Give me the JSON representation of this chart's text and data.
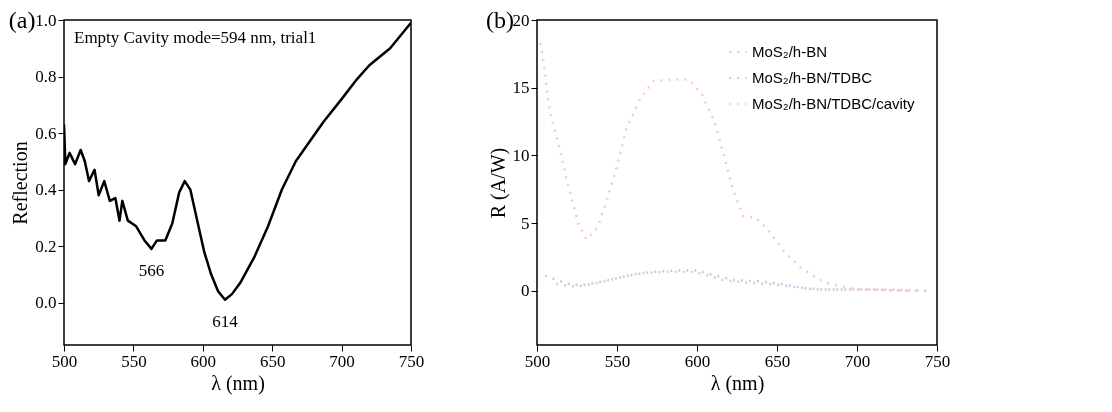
{
  "chart_data": [
    {
      "type": "line",
      "title": "(a)",
      "xlabel": "λ (nm)",
      "ylabel": "Reflection",
      "xlim": [
        500,
        750
      ],
      "xticks": [
        500,
        550,
        600,
        650,
        700,
        750
      ],
      "ylim": [
        -0.15,
        1.0
      ],
      "yticks": [
        {
          "value": 0,
          "label": "0.0"
        },
        {
          "value": 0.2,
          "label": "0.2"
        },
        {
          "value": 0.4,
          "label": "0.4"
        },
        {
          "value": 0.6,
          "label": "0.6"
        },
        {
          "value": 0.8,
          "label": "0.8"
        },
        {
          "value": 1.0,
          "label": "1.0"
        }
      ],
      "series": [
        {
          "color": "#000000",
          "x": [
            500,
            501,
            504,
            508,
            512,
            515,
            518,
            522,
            525,
            529,
            533,
            537,
            540,
            542,
            546,
            552,
            558,
            563,
            567,
            573,
            578,
            583,
            587,
            591,
            596,
            601,
            606,
            611,
            616,
            621,
            627,
            637,
            647,
            657,
            667,
            677,
            687,
            700,
            711,
            720,
            735,
            745,
            750
          ],
          "values": [
            0.63,
            0.49,
            0.53,
            0.49,
            0.54,
            0.5,
            0.43,
            0.47,
            0.38,
            0.43,
            0.36,
            0.37,
            0.29,
            0.36,
            0.29,
            0.27,
            0.22,
            0.19,
            0.22,
            0.22,
            0.28,
            0.39,
            0.43,
            0.4,
            0.29,
            0.18,
            0.1,
            0.04,
            0.01,
            0.03,
            0.07,
            0.16,
            0.27,
            0.4,
            0.5,
            0.57,
            0.64,
            0.72,
            0.79,
            0.84,
            0.9,
            0.96,
            0.99
          ]
        }
      ],
      "annotations": [
        "Empty Cavity mode=594 nm, trial1",
        {
          "text": "566",
          "x": 563,
          "y": 0.19
        },
        {
          "text": "614",
          "x": 616,
          "y": 0.01
        }
      ]
    },
    {
      "type": "line",
      "title": "(b)",
      "xlabel": "λ (nm)",
      "ylabel": "R (A/W)",
      "xlim": [
        500,
        750
      ],
      "xticks": [
        500,
        550,
        600,
        650,
        700,
        750
      ],
      "ylim": [
        -4,
        20
      ],
      "yticks": [
        0,
        5,
        10,
        15,
        20
      ],
      "legend": "top right",
      "line_style": "dashed",
      "series": [
        {
          "name": "MoS₂/h-BN",
          "color": "#e4c4dc",
          "x": [
            512,
            524,
            535,
            549,
            564,
            580,
            591,
            598,
            605,
            616,
            631,
            646,
            660,
            673,
            690,
            710,
            732
          ],
          "values": [
            0.5,
            0.3,
            0.5,
            0.9,
            1.3,
            1.4,
            1.4,
            1.4,
            1.2,
            0.8,
            0.6,
            0.5,
            0.3,
            0.1,
            0.1,
            0.1,
            0.0
          ]
        },
        {
          "name": "MoS₂/h-BN/TDBC",
          "color": "#c8c8f0",
          "x": [
            505,
            520,
            527,
            542,
            556,
            572,
            587,
            594,
            601,
            609,
            623,
            639,
            653,
            667,
            679,
            700,
            720,
            744
          ],
          "values": [
            1.1,
            0.5,
            0.4,
            0.7,
            1.1,
            1.4,
            1.5,
            1.5,
            1.5,
            1.2,
            0.8,
            0.7,
            0.5,
            0.2,
            0.1,
            0.1,
            0.1,
            0
          ]
        },
        {
          "name": "MoS₂/h-BN/TDBC/cavity",
          "color": "#f8c8d0",
          "x": [
            502,
            504,
            508,
            514,
            519,
            526,
            531,
            538,
            544,
            550,
            556,
            565,
            573,
            587,
            595,
            603,
            611,
            617,
            623,
            629,
            637,
            645,
            655,
            665,
            675,
            683,
            700,
            740
          ],
          "values": [
            18.3,
            17,
            13.2,
            10.6,
            8,
            4.9,
            3.8,
            4.7,
            6.8,
            9.2,
            12,
            14.3,
            15.5,
            15.6,
            15.6,
            14.5,
            12.5,
            9.9,
            7.3,
            5.5,
            5.4,
            4.4,
            2.8,
            1.7,
            0.9,
            0.5,
            0.1,
            0
          ]
        }
      ]
    }
  ]
}
